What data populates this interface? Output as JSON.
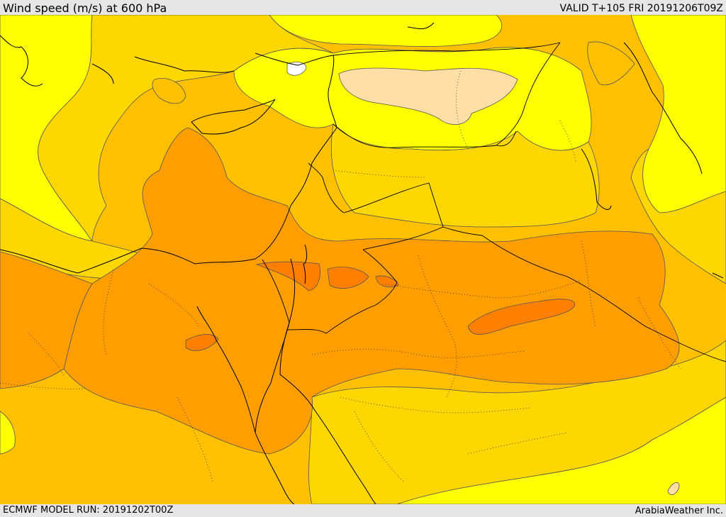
{
  "header": {
    "title": "Wind speed (m/s) at 600 hPa",
    "valid": "VALID T+105 FRI 20191206T09Z"
  },
  "footer": {
    "model_run": "ECMWF MODEL RUN: 20191202T00Z",
    "credit": "ArabiaWeather Inc."
  },
  "palette": {
    "light_yellow": "#ffff00",
    "gold": "#ffd700",
    "amber": "#ffc000",
    "orange": "#ff9e00",
    "dark_orange": "#ff7f00",
    "pale_peach": "#ffdfa6",
    "white": "#ffffff",
    "border_line": "#000000",
    "contour_line": "#555555"
  }
}
